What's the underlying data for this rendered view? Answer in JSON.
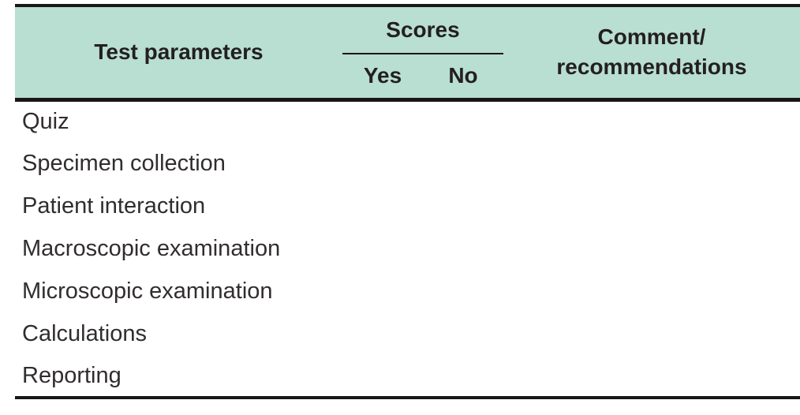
{
  "colors": {
    "header_bg": "#b9ded2",
    "header_text": "#231f20",
    "body_text": "#312d2e",
    "border": "#191617"
  },
  "table": {
    "header": {
      "test_parameters": "Test parameters",
      "scores": "Scores",
      "yes": "Yes",
      "no": "No",
      "comment": "Comment/\nrecommendations"
    },
    "rows": [
      {
        "parameter": "Quiz",
        "yes": "",
        "no": "",
        "comment": ""
      },
      {
        "parameter": "Specimen collection",
        "yes": "",
        "no": "",
        "comment": ""
      },
      {
        "parameter": "Patient interaction",
        "yes": "",
        "no": "",
        "comment": ""
      },
      {
        "parameter": "Macroscopic examination",
        "yes": "",
        "no": "",
        "comment": ""
      },
      {
        "parameter": "Microscopic examination",
        "yes": "",
        "no": "",
        "comment": ""
      },
      {
        "parameter": "Calculations",
        "yes": "",
        "no": "",
        "comment": ""
      },
      {
        "parameter": "Reporting",
        "yes": "",
        "no": "",
        "comment": ""
      }
    ]
  }
}
